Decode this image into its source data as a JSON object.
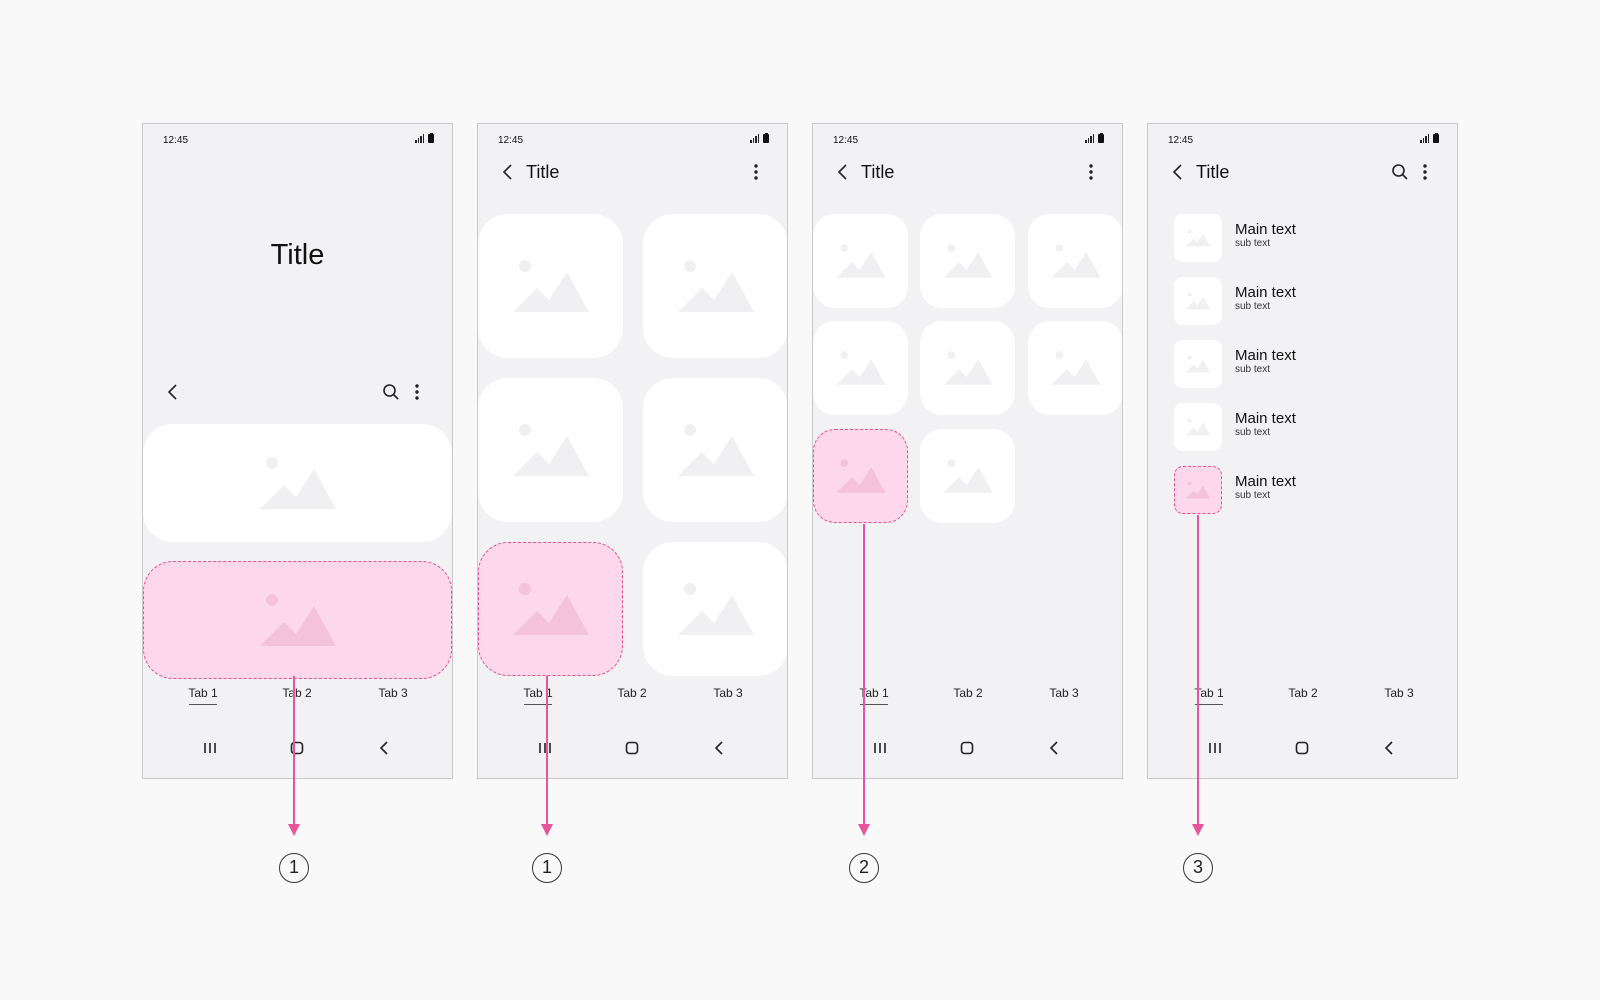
{
  "status": {
    "time": "12:45"
  },
  "phones": [
    {
      "large_title": "Title",
      "tabs": [
        "Tab 1",
        "Tab 2",
        "Tab 3"
      ]
    },
    {
      "title": "Title",
      "tabs": [
        "Tab 1",
        "Tab 2",
        "Tab 3"
      ]
    },
    {
      "title": "Title",
      "tabs": [
        "Tab 1",
        "Tab 2",
        "Tab 3"
      ]
    },
    {
      "title": "Title",
      "tabs": [
        "Tab 1",
        "Tab 2",
        "Tab 3"
      ],
      "list": [
        {
          "main": "Main text",
          "sub": "sub text"
        },
        {
          "main": "Main text",
          "sub": "sub text"
        },
        {
          "main": "Main text",
          "sub": "sub text"
        },
        {
          "main": "Main text",
          "sub": "sub text"
        },
        {
          "main": "Main text",
          "sub": "sub text"
        }
      ]
    }
  ],
  "markers": [
    "1",
    "1",
    "2",
    "3"
  ],
  "colors": {
    "highlight_fill": "#fdd7ea",
    "highlight_stroke": "#e5508f",
    "arrow": "#e9559a",
    "screen_bg": "#f2f2f4",
    "card": "#ffffff"
  },
  "icons": [
    "signal-icon",
    "battery-icon",
    "back-icon",
    "search-icon",
    "more-icon",
    "image-placeholder-icon",
    "recents-icon",
    "home-icon",
    "nav-back-icon"
  ]
}
